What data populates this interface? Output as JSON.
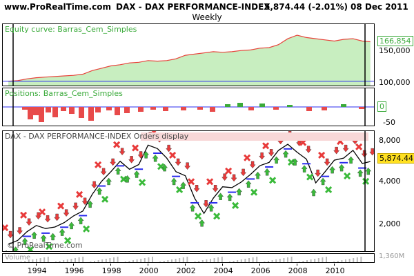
{
  "header": {
    "site": "www.ProRealTime.com",
    "instrument": "DAX - DAX PERFORMANCE-INDEX",
    "price": "5,874.44 (-2.01%)",
    "date": "08 Dec 2011",
    "period": "Weekly"
  },
  "equity_panel": {
    "title": "Equity curve: Barras_Cem_Simples",
    "current_value": "166,854",
    "axis_labels": [
      "150,000",
      "100,000"
    ]
  },
  "positions_panel": {
    "title": "Positions: Barras_Cem_Simples",
    "current_value": "0",
    "axis_labels": [
      "0",
      "-50"
    ]
  },
  "price_panel": {
    "legend": "DAX - DAX PERFORMANCE-INDEX Orders display",
    "current_value": "5,874.44",
    "axis_labels": [
      "8,000",
      "6,000",
      "4,000",
      "2,000"
    ],
    "watermark": "© ProRealTime.com"
  },
  "volume_panel": {
    "title": "Volume",
    "axis_label": "1,360M"
  },
  "x_axis": {
    "labels": [
      "1994",
      "1996",
      "1998",
      "2000",
      "2002",
      "2004",
      "2006",
      "2008",
      "2010"
    ]
  },
  "colors": {
    "equity_fill": "#c8eec0",
    "equity_line": "#e8423a",
    "positive_bar": "#3aaa3a",
    "negative_bar": "#e84a4a",
    "buy_arrow": "#3aba3a",
    "sell_arrow": "#e83a3a",
    "price_line": "#000000",
    "stop_line": "#2a2aee"
  },
  "chart_data": {
    "type": "line",
    "title": "DAX - DAX PERFORMANCE-INDEX",
    "x": [
      1992.5,
      1993,
      1993.5,
      1994,
      1994.5,
      1995,
      1995.5,
      1996,
      1996.5,
      1997,
      1997.5,
      1998,
      1998.5,
      1999,
      1999.5,
      2000,
      2000.5,
      2001,
      2001.5,
      2002,
      2002.5,
      2003,
      2003.5,
      2004,
      2004.5,
      2005,
      2005.5,
      2006,
      2006.5,
      2007,
      2007.5,
      2008,
      2008.5,
      2009,
      2009.5,
      2010,
      2010.5,
      2011,
      2011.5,
      2011.93
    ],
    "series": [
      {
        "name": "DAX - DAX PERFORMANCE-INDEX",
        "values": [
          1600,
          1700,
          1950,
          2150,
          2050,
          2100,
          2250,
          2500,
          2700,
          3500,
          4300,
          5000,
          5900,
          5200,
          5600,
          7600,
          7200,
          6200,
          5000,
          4700,
          3300,
          2600,
          3300,
          3950,
          3900,
          4250,
          4800,
          5500,
          5800,
          7000,
          7700,
          6800,
          6100,
          4200,
          5000,
          6000,
          6200,
          7000,
          5700,
          5874
        ]
      },
      {
        "name": "Equity curve: Barras_Cem_Simples",
        "values": [
          100000,
          101000,
          104000,
          106000,
          107000,
          108000,
          109000,
          110000,
          112000,
          118000,
          122000,
          126000,
          128000,
          131000,
          132000,
          135000,
          134000,
          135000,
          138000,
          144000,
          146000,
          148000,
          150000,
          149000,
          150000,
          152000,
          153000,
          156000,
          157000,
          162000,
          172000,
          178000,
          174000,
          172000,
          170000,
          168000,
          171000,
          172000,
          168000,
          166854
        ]
      }
    ],
    "y_axis": [
      "8,000",
      "6,000",
      "4,000",
      "2,000"
    ],
    "x_axis": [
      "1994",
      "1996",
      "1998",
      "2000",
      "2002",
      "2004",
      "2006",
      "2008",
      "2010"
    ],
    "ylim": [
      1500,
      8500
    ],
    "xlim": [
      1992.2,
      2012.2
    ],
    "log_scale": true,
    "grid": false
  }
}
